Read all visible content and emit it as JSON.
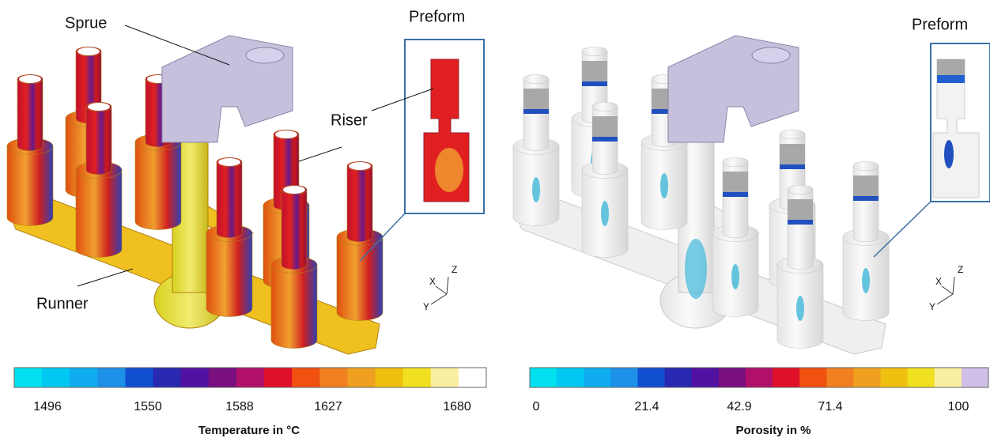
{
  "left_panel": {
    "labels": {
      "sprue": "Sprue",
      "preform": "Preform",
      "riser": "Riser",
      "runner": "Runner"
    },
    "axes": {
      "x": "X",
      "y": "Y",
      "z": "Z"
    },
    "colorbar": {
      "ticks": [
        "1496",
        "1550",
        "1588",
        "1627",
        "1680"
      ],
      "title": "Temperature in °C"
    }
  },
  "right_panel": {
    "labels": {
      "preform": "Preform"
    },
    "axes": {
      "x": "X",
      "y": "Y",
      "z": "Z"
    },
    "colorbar": {
      "ticks": [
        "0",
        "21.4",
        "42.9",
        "71.4",
        "100"
      ],
      "title": "Porosity in %"
    }
  }
}
